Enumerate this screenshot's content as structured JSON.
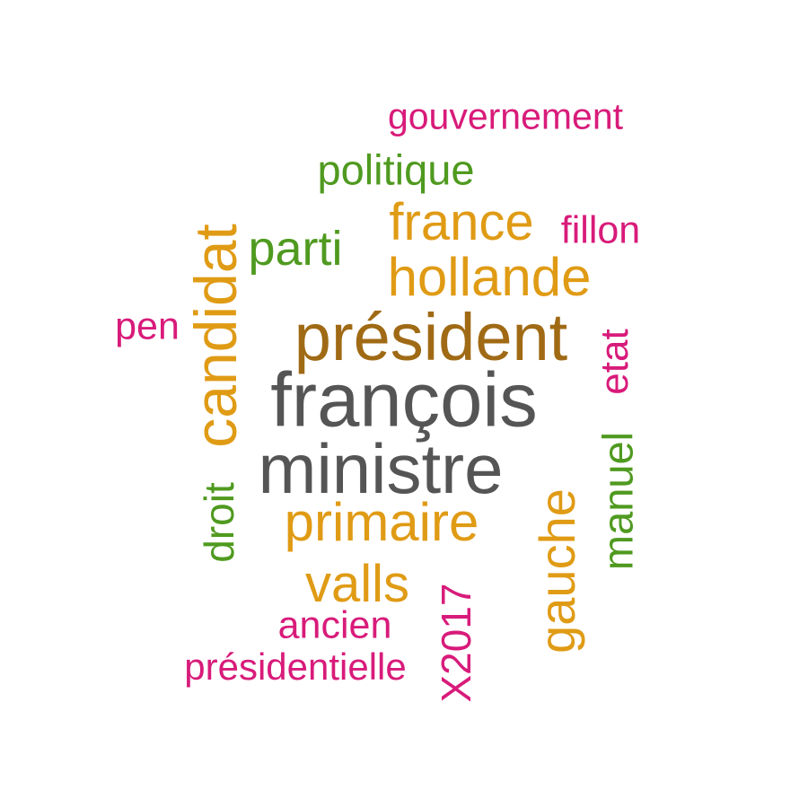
{
  "colors": {
    "pink": "#d81b7a",
    "green": "#4f9a1f",
    "orange": "#e09b15",
    "brown": "#a06a15",
    "gray": "#555555"
  },
  "words": {
    "gouvernement": "gouvernement",
    "politique": "politique",
    "france": "france",
    "fillon": "fillon",
    "parti": "parti",
    "hollande": "hollande",
    "candidat": "candidat",
    "pen": "pen",
    "president": "président",
    "etat": "etat",
    "francois": "françois",
    "manuel": "manuel",
    "ministre": "ministre",
    "gauche": "gauche",
    "droit": "droit",
    "primaire": "primaire",
    "valls": "valls",
    "x2017": "X2017",
    "ancien": "ancien",
    "presidentielle": "présidentielle"
  }
}
